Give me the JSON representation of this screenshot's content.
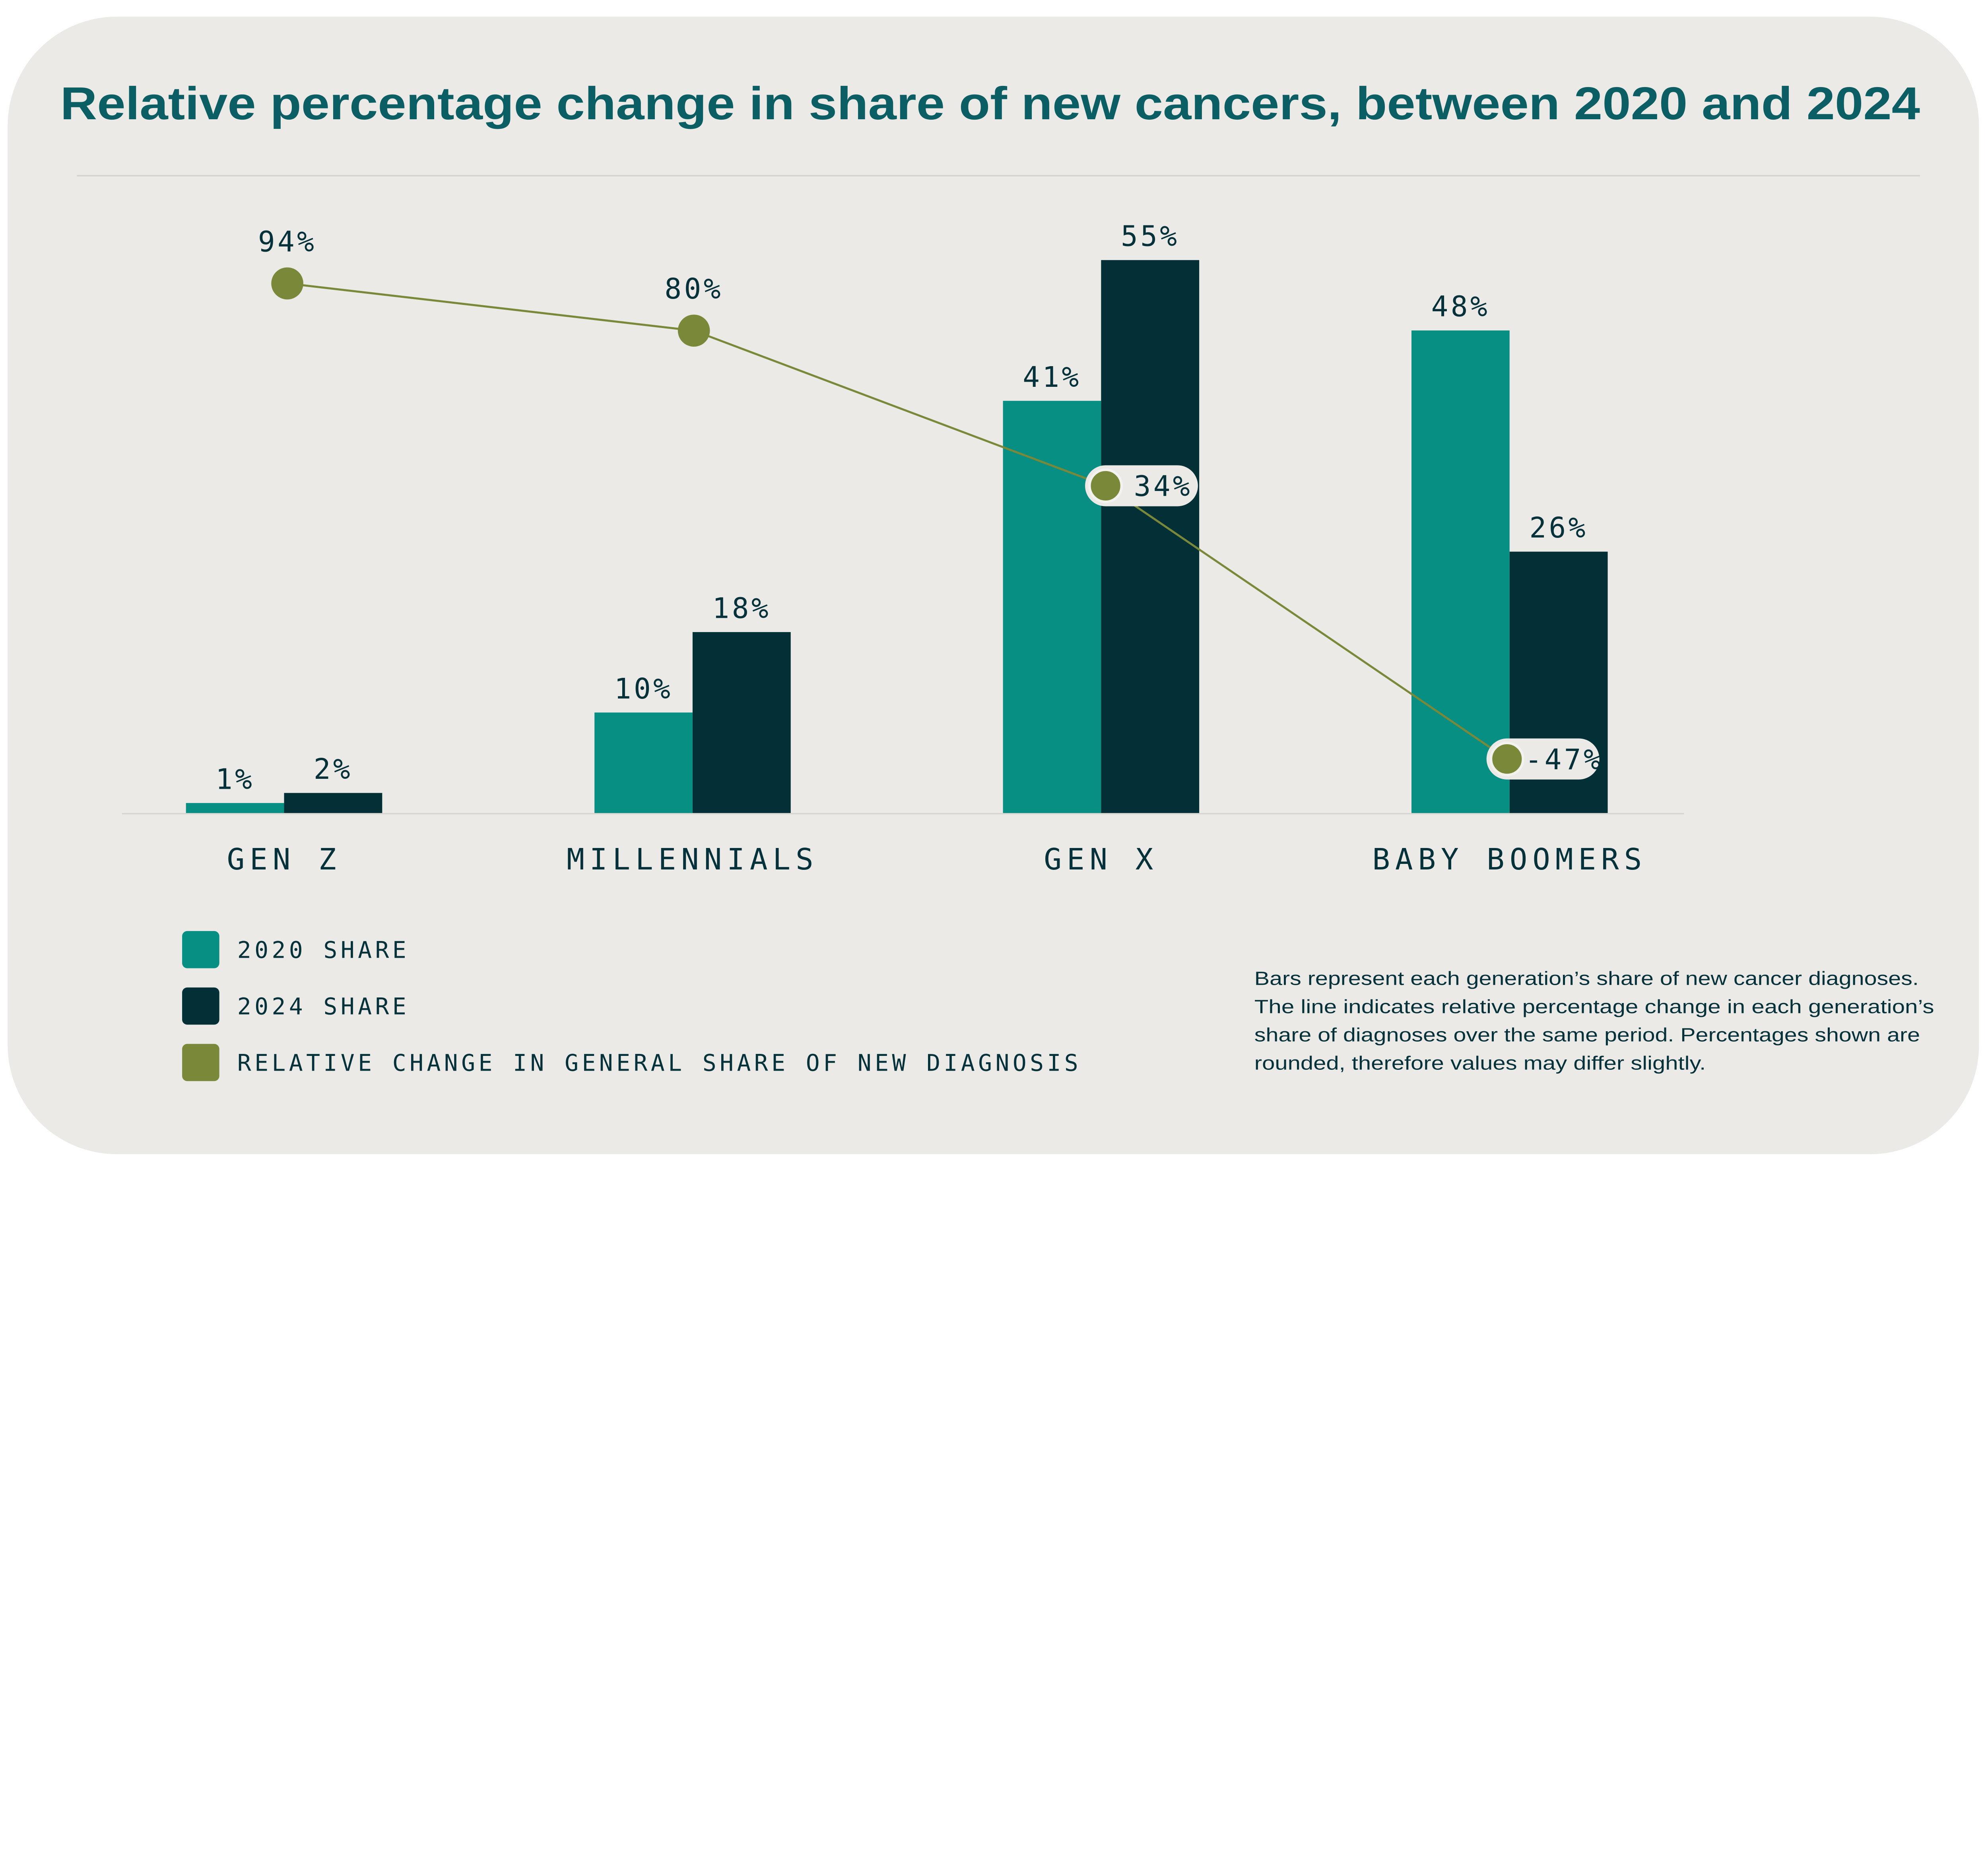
{
  "title": "Relative percentage change in share of new cancers, between 2020 and 2024",
  "colors": {
    "background": "#ECEAE6",
    "title": "#0B5E63",
    "share_2020": "#068F82",
    "share_2024": "#033036",
    "relative_change": "#7A8939",
    "text": "#04313A"
  },
  "chart_data": {
    "type": "bar+line",
    "title": "Relative percentage change in share of new cancers, between 2020 and 2024",
    "categories": [
      "GEN Z",
      "MILLENNIALS",
      "GEN X",
      "BABY BOOMERS"
    ],
    "series": [
      {
        "name": "2020 SHARE",
        "type": "bar",
        "values": [
          1,
          10,
          41,
          48
        ],
        "labels": [
          "1%",
          "10%",
          "41%",
          "48%"
        ]
      },
      {
        "name": "2024 SHARE",
        "type": "bar",
        "values": [
          2,
          18,
          55,
          26
        ],
        "labels": [
          "2%",
          "18%",
          "55%",
          "26%"
        ]
      },
      {
        "name": "RELATIVE CHANGE IN GENERAL SHARE OF NEW DIAGNOSIS",
        "type": "line",
        "values": [
          94,
          80,
          34,
          -47
        ],
        "labels": [
          "94%",
          "80%",
          "34%",
          "-47%"
        ]
      }
    ],
    "legend_position": "bottom-left",
    "grid": false
  },
  "legend": [
    "2020 SHARE",
    "2024 SHARE",
    "RELATIVE CHANGE IN GENERAL SHARE OF NEW DIAGNOSIS"
  ],
  "note": [
    "Bars represent each generation’s share of new cancer diagnoses.",
    "The line indicates relative percentage change in each generation’s",
    "share of diagnoses over the same period. Percentages shown are",
    "rounded, therefore values may differ slightly."
  ]
}
